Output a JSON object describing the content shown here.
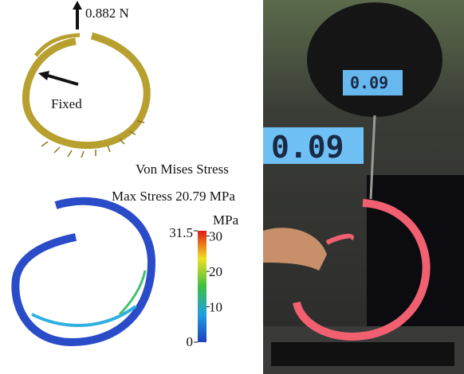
{
  "force_label": "0.882 N",
  "fixed_label": "Fixed",
  "stress_title": "Von Mises Stress",
  "max_stress_label": "Max Stress 20.79 MPa",
  "colorbar": {
    "title": "MPa",
    "range": [
      0,
      31.5
    ],
    "ticks": [
      10,
      20,
      30
    ]
  },
  "scale_reading": "0.09"
}
